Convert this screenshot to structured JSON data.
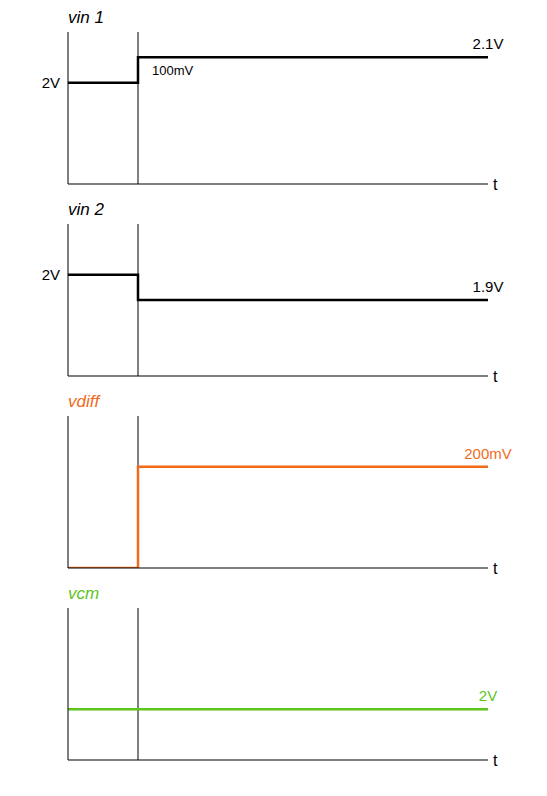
{
  "chart_data": [
    {
      "type": "line",
      "title": "vin 1",
      "xlabel": "t",
      "x": [
        -1,
        0,
        5
      ],
      "values": [
        2,
        2.1,
        2.1
      ],
      "color": "#000000",
      "line_style": "step",
      "xlim": [
        -1,
        5
      ],
      "ylim": [
        1.6,
        2.2
      ],
      "tick_labels": false,
      "annotations": [
        {
          "text": "2V",
          "y": 2
        },
        {
          "text": "2.1V",
          "y": 2.1
        },
        {
          "text": "100mV"
        }
      ]
    },
    {
      "type": "line",
      "title": "vin 2",
      "xlabel": "t",
      "x": [
        -1,
        0,
        5
      ],
      "values": [
        2,
        1.9,
        1.9
      ],
      "color": "#000000",
      "line_style": "step",
      "xlim": [
        -1,
        5
      ],
      "ylim": [
        1.6,
        2.2
      ],
      "tick_labels": false,
      "annotations": [
        {
          "text": "2V",
          "y": 2
        },
        {
          "text": "1.9V",
          "y": 1.9
        }
      ]
    },
    {
      "type": "line",
      "title": "vdiff",
      "xlabel": "t",
      "x": [
        -1,
        0,
        5
      ],
      "values": [
        0,
        200,
        200
      ],
      "color": "#f26b1d",
      "line_style": "step",
      "xlim": [
        -1,
        5
      ],
      "ylim": [
        0,
        300
      ],
      "tick_labels": false,
      "annotations": [
        {
          "text": "200mV",
          "y": 200
        }
      ]
    },
    {
      "type": "line",
      "title": "vcm",
      "xlabel": "t",
      "x": [
        -1,
        0,
        5
      ],
      "values": [
        2,
        2,
        2
      ],
      "color": "#5cc41a",
      "line_style": "step",
      "xlim": [
        -1,
        5
      ],
      "ylim": [
        1.8,
        2.4
      ],
      "tick_labels": false,
      "annotations": [
        {
          "text": "2V",
          "y": 2
        }
      ]
    }
  ]
}
